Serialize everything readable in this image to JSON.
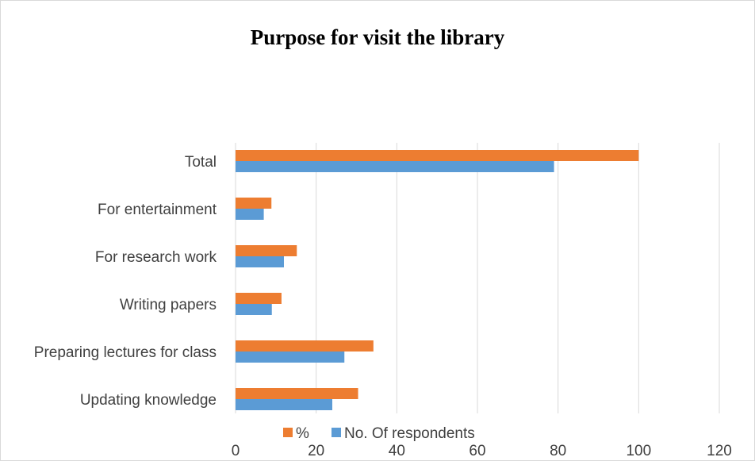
{
  "chart_data": {
    "type": "bar",
    "orientation": "horizontal",
    "title": "Purpose for visit the library",
    "xlabel": "",
    "ylabel": "",
    "categories": [
      "Total",
      "For entertainment",
      "For research work",
      "Writing papers",
      "Preparing lectures for class",
      "Updating knowledge"
    ],
    "series": [
      {
        "name": "%",
        "color": "#ed7d31",
        "values": [
          100,
          8.9,
          15.2,
          11.4,
          34.2,
          30.4
        ]
      },
      {
        "name": "No. Of respondents",
        "color": "#5b9bd5",
        "values": [
          79,
          7,
          12,
          9,
          27,
          24
        ]
      }
    ],
    "xlim": [
      0,
      120
    ],
    "xticks": [
      "0",
      "20",
      "40",
      "60",
      "80",
      "100",
      "120"
    ],
    "grid": true,
    "legend_position": "bottom"
  }
}
